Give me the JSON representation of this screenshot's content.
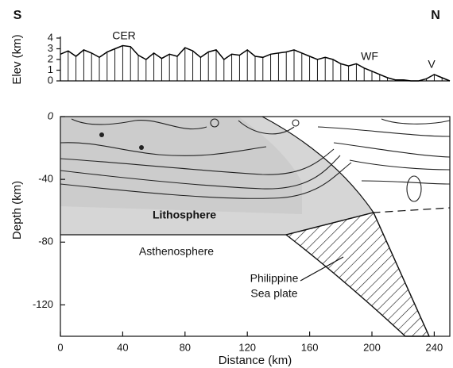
{
  "chart_data": [
    {
      "type": "line",
      "ylabel": "Elev (km)",
      "annotations": [
        "S",
        "N",
        "CER",
        "WF",
        "V"
      ],
      "x": [
        0,
        5,
        10,
        15,
        20,
        25,
        30,
        35,
        40,
        45,
        50,
        55,
        60,
        65,
        70,
        75,
        80,
        85,
        90,
        95,
        100,
        105,
        110,
        115,
        120,
        125,
        130,
        135,
        140,
        145,
        150,
        155,
        160,
        165,
        170,
        175,
        180,
        185,
        190,
        195,
        200,
        205,
        210,
        215,
        220,
        225,
        230,
        235,
        240,
        245,
        250
      ],
      "values": [
        2.5,
        2.8,
        2.3,
        2.9,
        2.6,
        2.2,
        2.7,
        3.0,
        3.3,
        3.2,
        2.4,
        2.0,
        2.6,
        2.1,
        2.5,
        2.3,
        3.1,
        2.8,
        2.2,
        2.7,
        2.9,
        2.0,
        2.5,
        2.4,
        2.9,
        2.3,
        2.2,
        2.5,
        2.6,
        2.7,
        2.9,
        2.6,
        2.3,
        2.0,
        2.2,
        2.0,
        1.6,
        1.4,
        1.6,
        1.2,
        0.9,
        0.6,
        0.3,
        0.1,
        0.1,
        0,
        0,
        0.2,
        0.6,
        0.3,
        0
      ],
      "color": "#000000",
      "xlim": [
        0,
        250
      ],
      "ylim": [
        0,
        4
      ],
      "yticks": [
        0,
        1,
        2,
        3,
        4
      ]
    },
    {
      "type": "section",
      "xlabel": "Distance (km)",
      "ylabel": "Depth (km)",
      "annotations": [
        "Lithosphere",
        "Asthenosphere",
        "Philippine",
        "Sea plate"
      ],
      "xlim": [
        0,
        250
      ],
      "ylim": [
        -140,
        0
      ],
      "xticks": [
        0,
        40,
        80,
        120,
        160,
        200,
        240
      ],
      "yticks": [
        -120,
        -80,
        -40,
        0
      ]
    }
  ]
}
